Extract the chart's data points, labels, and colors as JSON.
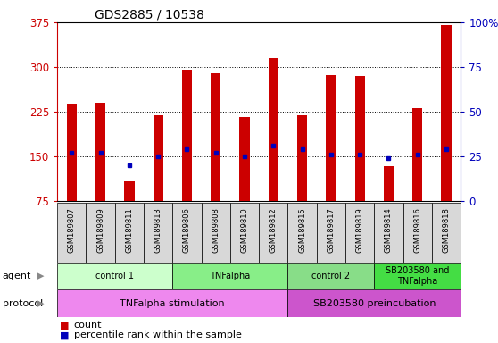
{
  "title": "GDS2885 / 10538",
  "samples": [
    "GSM189807",
    "GSM189809",
    "GSM189811",
    "GSM189813",
    "GSM189806",
    "GSM189808",
    "GSM189810",
    "GSM189812",
    "GSM189815",
    "GSM189817",
    "GSM189819",
    "GSM189814",
    "GSM189816",
    "GSM189818"
  ],
  "counts": [
    238,
    240,
    107,
    218,
    295,
    290,
    215,
    315,
    218,
    287,
    285,
    133,
    230,
    370
  ],
  "percentile_ranks_pct": [
    27,
    27,
    20,
    25,
    29,
    27,
    25,
    31,
    29,
    26,
    26,
    24,
    26,
    29
  ],
  "ylim": [
    75,
    375
  ],
  "yticks_left": [
    75,
    150,
    225,
    300,
    375
  ],
  "yticks_right": [
    0,
    25,
    50,
    75,
    100
  ],
  "bar_color": "#cc0000",
  "dot_color": "#0000bb",
  "agent_groups": [
    {
      "label": "control 1",
      "start": 0,
      "end": 4,
      "color": "#ccffcc"
    },
    {
      "label": "TNFalpha",
      "start": 4,
      "end": 8,
      "color": "#88ee88"
    },
    {
      "label": "control 2",
      "start": 8,
      "end": 11,
      "color": "#88dd88"
    },
    {
      "label": "SB203580 and\nTNFalpha",
      "start": 11,
      "end": 14,
      "color": "#44dd44"
    }
  ],
  "protocol_groups": [
    {
      "label": "TNFalpha stimulation",
      "start": 0,
      "end": 8,
      "color": "#ee88ee"
    },
    {
      "label": "SB203580 preincubation",
      "start": 8,
      "end": 14,
      "color": "#cc55cc"
    }
  ],
  "legend_square_color_count": "#cc0000",
  "legend_label_count": "count",
  "legend_square_color_pct": "#0000bb",
  "legend_label_pct": "percentile rank within the sample",
  "left_tick_color": "#cc0000",
  "right_tick_color": "#0000bb",
  "bar_width": 0.35
}
